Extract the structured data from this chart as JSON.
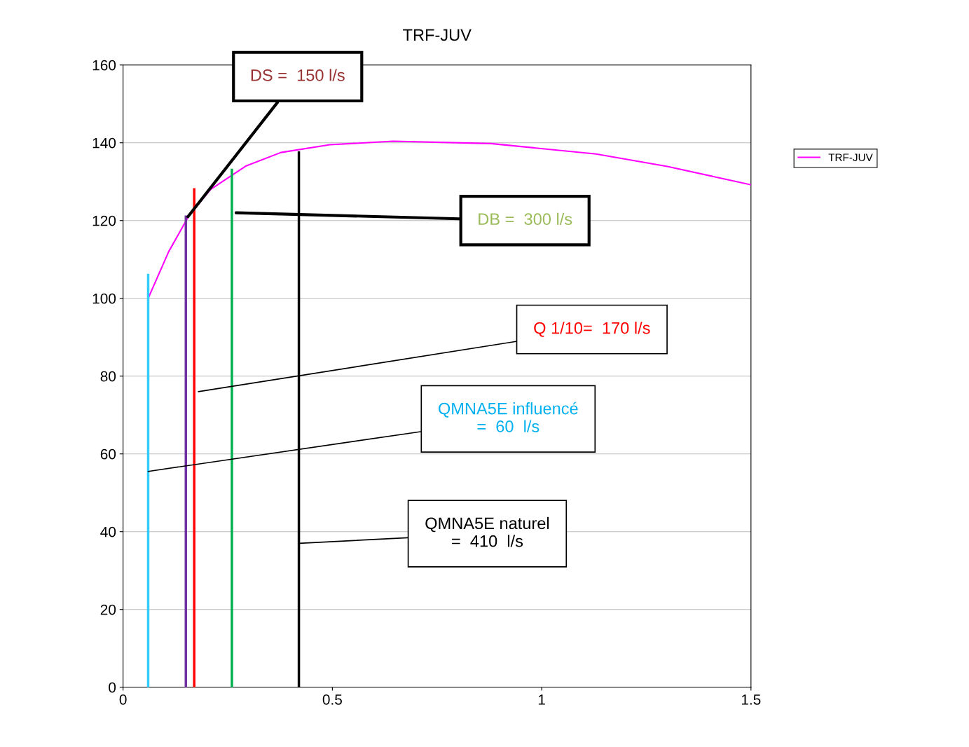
{
  "chart_data": {
    "type": "line",
    "title": "TRF-JUV",
    "xlim": [
      0,
      1.5
    ],
    "xticks": [
      0,
      0.5,
      1,
      1.5
    ],
    "ylim": [
      0,
      160
    ],
    "yticks": [
      0,
      20,
      40,
      60,
      80,
      100,
      120,
      140,
      160
    ],
    "grid": "y",
    "legend": "right",
    "marker": "none",
    "line_style": "solid",
    "series": [
      {
        "name": "TRF-JUV",
        "color": "#ff00ff",
        "x": [
          0.06,
          0.109,
          0.156,
          0.209,
          0.293,
          0.377,
          0.494,
          0.645,
          0.879,
          1.13,
          1.3,
          1.5
        ],
        "values": [
          100,
          112,
          121,
          128,
          134,
          137.5,
          139.5,
          140.4,
          139.8,
          137.1,
          133.9,
          129.2
        ]
      },
      {
        "color": "#33ccff",
        "x": [
          0.06,
          0.06
        ],
        "values": [
          0,
          106
        ]
      },
      {
        "color": "#7030a0",
        "x": [
          0.15,
          0.15
        ],
        "values": [
          0,
          121
        ]
      },
      {
        "color": "#ff0000",
        "x": [
          0.17,
          0.17
        ],
        "values": [
          0,
          128
        ]
      },
      {
        "color": "#00b050",
        "x": [
          0.26,
          0.26
        ],
        "values": [
          0,
          133
        ]
      },
      {
        "color": "#000000",
        "x": [
          0.42,
          0.42
        ],
        "values": [
          0,
          137.5
        ]
      }
    ],
    "annotations": [
      {
        "text": "DS =  150 l/s",
        "x": 0.155,
        "y": 121
      },
      {
        "text": "DB =  300 l/s",
        "x": 0.27,
        "y": 122
      },
      {
        "text": "Q 1/10=  170 l/s",
        "x": 0.18,
        "y": 76
      },
      {
        "text": "QMNA5E influencé\n=  60  l/s",
        "x": 0.06,
        "y": 55.5
      },
      {
        "text": "QMNA5E naturel\n=  410  l/s",
        "x": 0.42,
        "y": 37
      }
    ]
  }
}
